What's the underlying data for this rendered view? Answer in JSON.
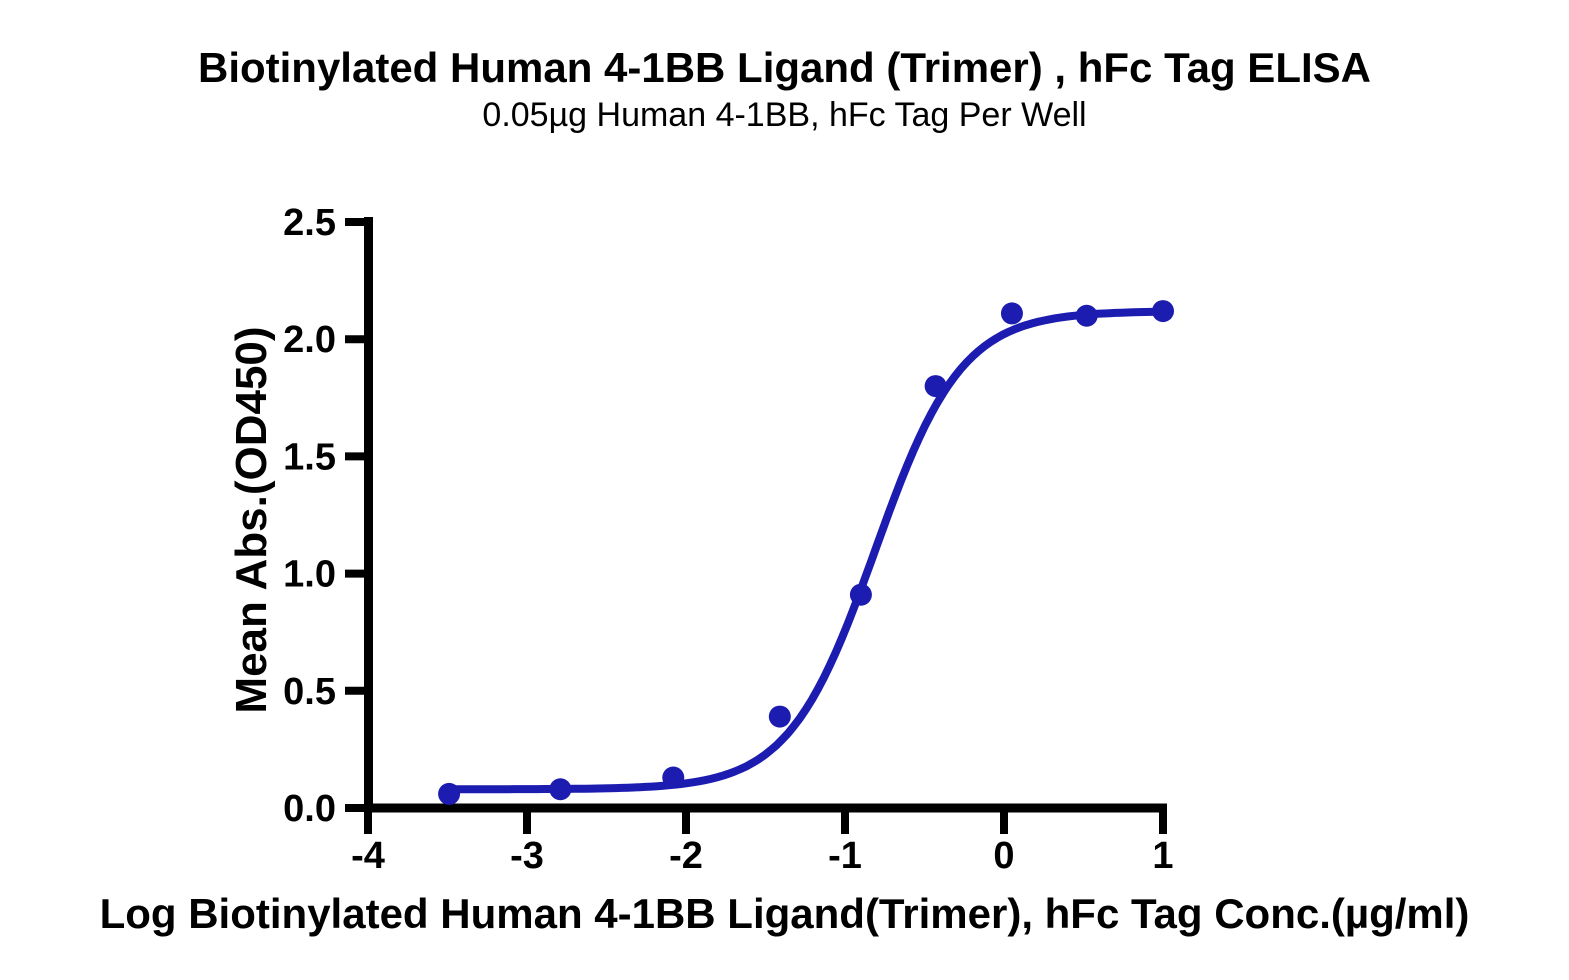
{
  "chart_data": {
    "type": "scatter",
    "title": "Biotinylated Human 4-1BB Ligand (Trimer) , hFc Tag ELISA",
    "subtitle": "0.05µg Human 4-1BB, hFc Tag Per Well",
    "xlabel": "Log Biotinylated Human 4-1BB Ligand(Trimer), hFc Tag Conc.(µg/ml)",
    "ylabel": "Mean Abs.(OD450)",
    "xlim": [
      -4,
      1
    ],
    "ylim": [
      0,
      2.5
    ],
    "x_ticks": [
      -4,
      -3,
      -2,
      -1,
      0,
      1
    ],
    "x_tick_labels": [
      "-4",
      "-3",
      "-2",
      "-1",
      "0",
      "1"
    ],
    "y_ticks": [
      0,
      0.5,
      1,
      1.5,
      2,
      2.5
    ],
    "y_tick_labels": [
      "0.0",
      "0.5",
      "1.0",
      "1.5",
      "2.0",
      "2.5"
    ],
    "grid": false,
    "legend_position": "none",
    "axis_color": "#000000",
    "background_color": "#ffffff",
    "series": [
      {
        "name": "Biotinylated Human 4-1BB Ligand (Trimer), hFc Tag",
        "color": "#1c1cb0",
        "marker": "circle",
        "points": [
          {
            "x": -3.49,
            "y": 0.06
          },
          {
            "x": -2.79,
            "y": 0.08
          },
          {
            "x": -2.08,
            "y": 0.13
          },
          {
            "x": -1.41,
            "y": 0.39
          },
          {
            "x": -0.9,
            "y": 0.91
          },
          {
            "x": -0.43,
            "y": 1.8
          },
          {
            "x": 0.05,
            "y": 2.11
          },
          {
            "x": 0.52,
            "y": 2.1
          },
          {
            "x": 1.0,
            "y": 2.12
          }
        ],
        "fit_curve": {
          "model": "4PL",
          "bottom": 0.08,
          "top": 2.12,
          "logEC50": -0.81,
          "hillslope": 1.6,
          "x_start": -3.49,
          "x_end": 1.0
        }
      }
    ]
  }
}
